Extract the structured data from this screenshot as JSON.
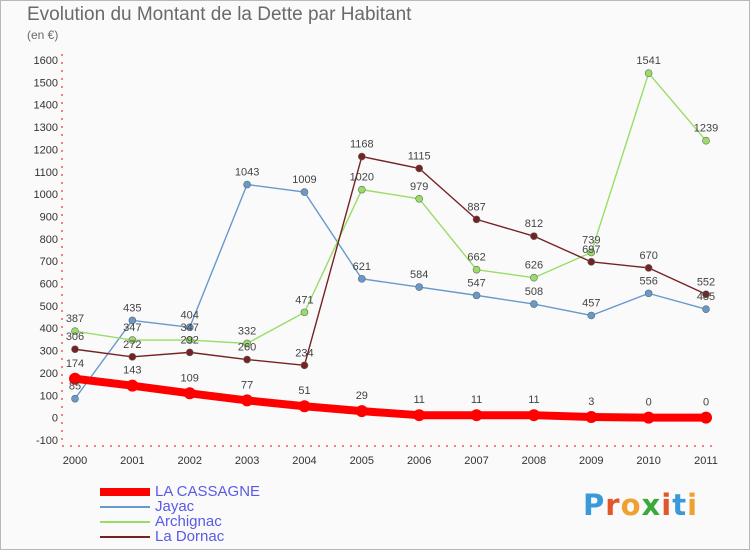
{
  "header": {
    "title": "Evolution du Montant de la Dette par Habitant",
    "unit": "(en €)"
  },
  "logo": {
    "text": "Proxiti",
    "icon": "proxiti-logo"
  },
  "chart_data": {
    "type": "line",
    "title": "Evolution du Montant de la Dette par Habitant",
    "subtitle": "(en €)",
    "xlabel": "",
    "ylabel": "",
    "x": [
      "2000",
      "2001",
      "2002",
      "2003",
      "2004",
      "2005",
      "2006",
      "2007",
      "2008",
      "2009",
      "2010",
      "2011"
    ],
    "yticks": [
      -100,
      0,
      100,
      200,
      300,
      400,
      500,
      600,
      700,
      800,
      900,
      1000,
      1100,
      1200,
      1300,
      1400,
      1500,
      1600
    ],
    "ylim": [
      -100,
      1600
    ],
    "grid": false,
    "legend_position": "bottom-left",
    "series": [
      {
        "name": "LA CASSAGNE",
        "color": "#ff0000",
        "values": [
          174,
          143,
          109,
          77,
          51,
          29,
          11,
          11,
          11,
          3,
          0,
          0
        ]
      },
      {
        "name": "Jayac",
        "color": "#6699cc",
        "values": [
          85,
          435,
          404,
          1043,
          1009,
          621,
          584,
          547,
          508,
          457,
          556,
          485
        ]
      },
      {
        "name": "Archignac",
        "color": "#99dd66",
        "values": [
          387,
          347,
          347,
          332,
          471,
          1020,
          979,
          662,
          626,
          739,
          1541,
          1239
        ]
      },
      {
        "name": "La Dornac",
        "color": "#772222",
        "values": [
          306,
          272,
          292,
          260,
          234,
          1168,
          1115,
          887,
          812,
          697,
          670,
          552
        ]
      }
    ]
  }
}
